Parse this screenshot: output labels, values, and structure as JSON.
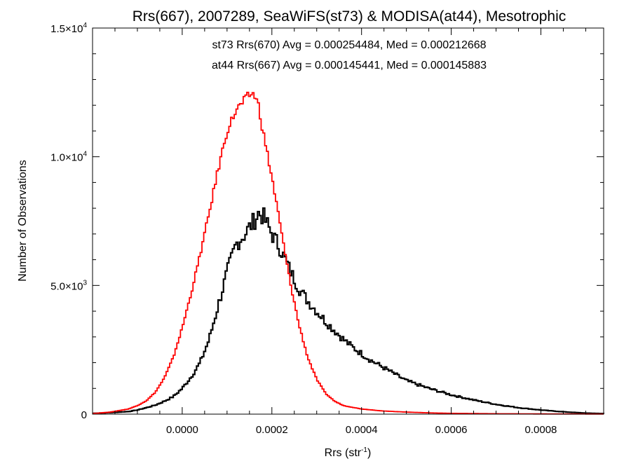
{
  "chart_data": {
    "type": "histogram-step",
    "title": "Rrs(667), 2007289, SeaWiFS(st73) & MODISA(at44), Mesotrophic",
    "xlabel": "Rrs (str",
    "xlabel_sup": "-1",
    "xlabel_end": ")",
    "ylabel": "Number of Observations",
    "xlim": [
      -0.0002,
      0.00094
    ],
    "ylim": [
      0,
      15000
    ],
    "grid": false,
    "x_ticks": [
      {
        "value": 0.0,
        "label": "0.0000"
      },
      {
        "value": 0.0002,
        "label": "0.0002"
      },
      {
        "value": 0.0004,
        "label": "0.0004"
      },
      {
        "value": 0.0006,
        "label": "0.0006"
      },
      {
        "value": 0.0008,
        "label": "0.0008"
      }
    ],
    "y_ticks": [
      {
        "value": 0,
        "mantissa": "0",
        "exp": ""
      },
      {
        "value": 5000,
        "mantissa": "5.0×10",
        "exp": "3"
      },
      {
        "value": 10000,
        "mantissa": "1.0×10",
        "exp": "4"
      },
      {
        "value": 15000,
        "mantissa": "1.5×10",
        "exp": "4"
      }
    ],
    "stats": [
      {
        "text": "st73 Rrs(670) Avg = 0.000254484, Med = 0.000212668",
        "color": "#000000"
      },
      {
        "text": "at44 Rrs(667) Avg = 0.000145441, Med = 0.000145883",
        "color": "#ff0000"
      }
    ],
    "series": [
      {
        "name": "st73 Rrs(670)",
        "color": "#000000",
        "x": [
          -0.0002,
          -0.00016,
          -0.00012,
          -0.0001,
          -8e-05,
          -6e-05,
          -4e-05,
          -2e-05,
          0.0,
          2e-05,
          4e-05,
          6e-05,
          8e-05,
          0.0001,
          0.00012,
          0.00014,
          0.00016,
          0.00017,
          0.00018,
          0.0002,
          0.00022,
          0.00024,
          0.00026,
          0.00028,
          0.0003,
          0.00032,
          0.00034,
          0.00036,
          0.00038,
          0.0004,
          0.00042,
          0.00044,
          0.00046,
          0.00048,
          0.0005,
          0.00055,
          0.0006,
          0.00065,
          0.0007,
          0.00075,
          0.0008,
          0.00085,
          0.0009,
          0.00094
        ],
        "y": [
          30,
          60,
          100,
          160,
          250,
          350,
          500,
          680,
          1000,
          1450,
          2000,
          2900,
          4200,
          5500,
          6600,
          7000,
          7500,
          7800,
          7700,
          7000,
          6400,
          5600,
          4900,
          4400,
          4000,
          3600,
          3250,
          2900,
          2600,
          2350,
          2100,
          1900,
          1700,
          1500,
          1300,
          1000,
          750,
          550,
          380,
          250,
          160,
          90,
          40,
          20
        ]
      },
      {
        "name": "at44 Rrs(667)",
        "color": "#ff0000",
        "x": [
          -0.0002,
          -0.00016,
          -0.00012,
          -0.0001,
          -8e-05,
          -6e-05,
          -4e-05,
          -2e-05,
          0.0,
          2e-05,
          4e-05,
          6e-05,
          8e-05,
          0.0001,
          0.00012,
          0.00014,
          0.00015,
          0.00016,
          0.00017,
          0.00018,
          0.0002,
          0.00022,
          0.00024,
          0.00026,
          0.00028,
          0.0003,
          0.00032,
          0.00034,
          0.00036,
          0.0004,
          0.00045,
          0.0005,
          0.00055,
          0.0006,
          0.0007,
          0.0008,
          0.00094
        ],
        "y": [
          20,
          80,
          200,
          330,
          520,
          850,
          1400,
          2200,
          3350,
          4700,
          6200,
          7800,
          9500,
          11000,
          11800,
          12200,
          12400,
          12450,
          12000,
          11000,
          9200,
          7200,
          5200,
          3500,
          2200,
          1350,
          800,
          500,
          330,
          200,
          120,
          80,
          50,
          30,
          15,
          8,
          5
        ]
      }
    ]
  }
}
